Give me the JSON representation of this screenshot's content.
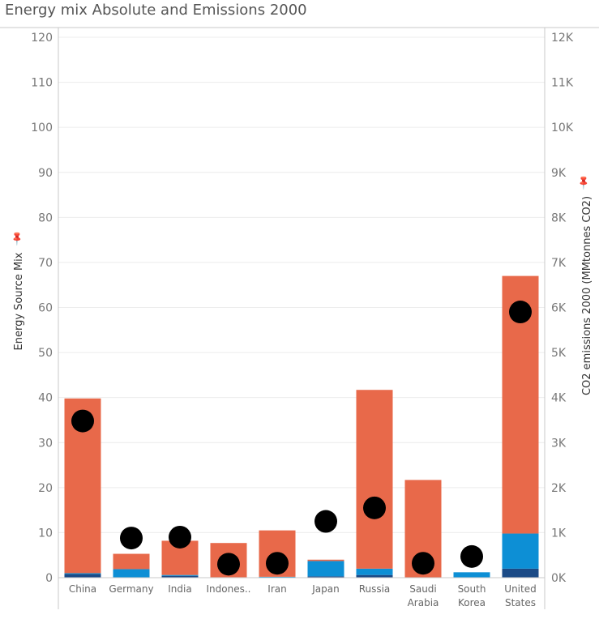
{
  "title": "Energy mix Absolute and Emissions 2000",
  "colors": {
    "fossil": "#E8694A",
    "renewable": "#0D8FD5",
    "nuclear": "#1B4A86",
    "emissions_marker": "#000000",
    "grid": "#ECECEC",
    "axis": "#C8C8C8"
  },
  "chart_data": {
    "type": "bar",
    "title": "Energy mix Absolute and Emissions 2000",
    "categories": [
      "China",
      "Germany",
      "India",
      "Indones..",
      "Iran",
      "Japan",
      "Russia",
      "Saudi Arabia",
      "South Korea",
      "United States"
    ],
    "category_label_lines": [
      [
        "China"
      ],
      [
        "Germany"
      ],
      [
        "India"
      ],
      [
        "Indones.."
      ],
      [
        "Iran"
      ],
      [
        "Japan"
      ],
      [
        "Russia"
      ],
      [
        "Saudi",
        "Arabia"
      ],
      [
        "South",
        "Korea"
      ],
      [
        "United",
        "States"
      ]
    ],
    "ylabel": "Energy Source Mix",
    "y2label": "CO2 emissions 2000 (MMtonnes CO2)",
    "ylim": [
      0,
      120
    ],
    "y2lim": [
      0,
      12000
    ],
    "yticks": [
      "0",
      "10",
      "20",
      "30",
      "40",
      "50",
      "60",
      "70",
      "80",
      "90",
      "100",
      "110",
      "120"
    ],
    "y2ticks": [
      "0K",
      "1K",
      "2K",
      "3K",
      "4K",
      "5K",
      "6K",
      "7K",
      "8K",
      "9K",
      "10K",
      "11K",
      "12K"
    ],
    "stacked_series": [
      {
        "key": "nuclear",
        "values": [
          0.8,
          0.0,
          0.4,
          0.0,
          0.0,
          0.3,
          0.6,
          0.0,
          0.0,
          2.0
        ]
      },
      {
        "key": "renewable",
        "values": [
          0.2,
          1.9,
          0.2,
          0.1,
          0.2,
          3.4,
          1.4,
          0.0,
          1.2,
          7.8
        ]
      },
      {
        "key": "fossil",
        "values": [
          38.8,
          3.4,
          7.6,
          7.6,
          10.3,
          0.3,
          39.7,
          21.7,
          0.0,
          57.2
        ]
      }
    ],
    "emissions": [
      3480,
      880,
      900,
      300,
      320,
      1250,
      1550,
      320,
      470,
      5900
    ]
  }
}
